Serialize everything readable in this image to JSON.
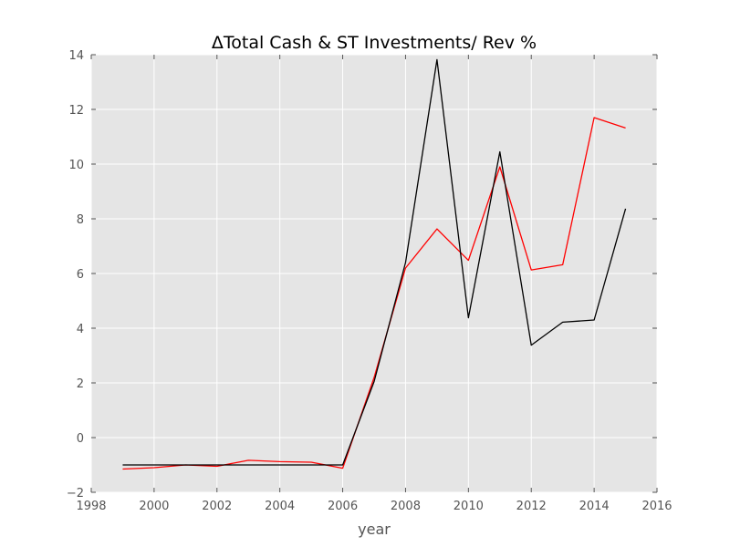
{
  "chart_data": {
    "type": "line",
    "title": "ΔTotal Cash & ST Investments/ Rev %",
    "xlabel": "year",
    "ylabel": "",
    "xlim": [
      1998,
      2016
    ],
    "ylim": [
      -2,
      14
    ],
    "xticks": [
      1998,
      2000,
      2002,
      2004,
      2006,
      2008,
      2010,
      2012,
      2014,
      2016
    ],
    "yticks": [
      -2,
      0,
      2,
      4,
      6,
      8,
      10,
      12,
      14
    ],
    "grid": true,
    "legend": "none",
    "x": [
      1999,
      2000,
      2001,
      2002,
      2003,
      2004,
      2005,
      2006,
      2007,
      2008,
      2009,
      2010,
      2011,
      2012,
      2013,
      2014,
      2015
    ],
    "series": [
      {
        "color": "#ff0000",
        "values": [
          -1.15,
          -1.1,
          -1.0,
          -1.05,
          -0.83,
          -0.88,
          -0.9,
          -1.12,
          2.2,
          6.2,
          7.63,
          6.48,
          9.9,
          6.13,
          6.32,
          11.7,
          11.32
        ]
      },
      {
        "color": "#000000",
        "values": [
          -1.0,
          -1.0,
          -1.0,
          -1.0,
          -1.0,
          -1.0,
          -1.0,
          -1.0,
          2.05,
          6.4,
          13.82,
          4.38,
          10.45,
          3.38,
          4.22,
          4.3,
          8.37
        ]
      }
    ],
    "colors": {
      "plot_background": "#e5e5e5",
      "grid": "#ffffff",
      "tick_text": "#555555"
    }
  }
}
